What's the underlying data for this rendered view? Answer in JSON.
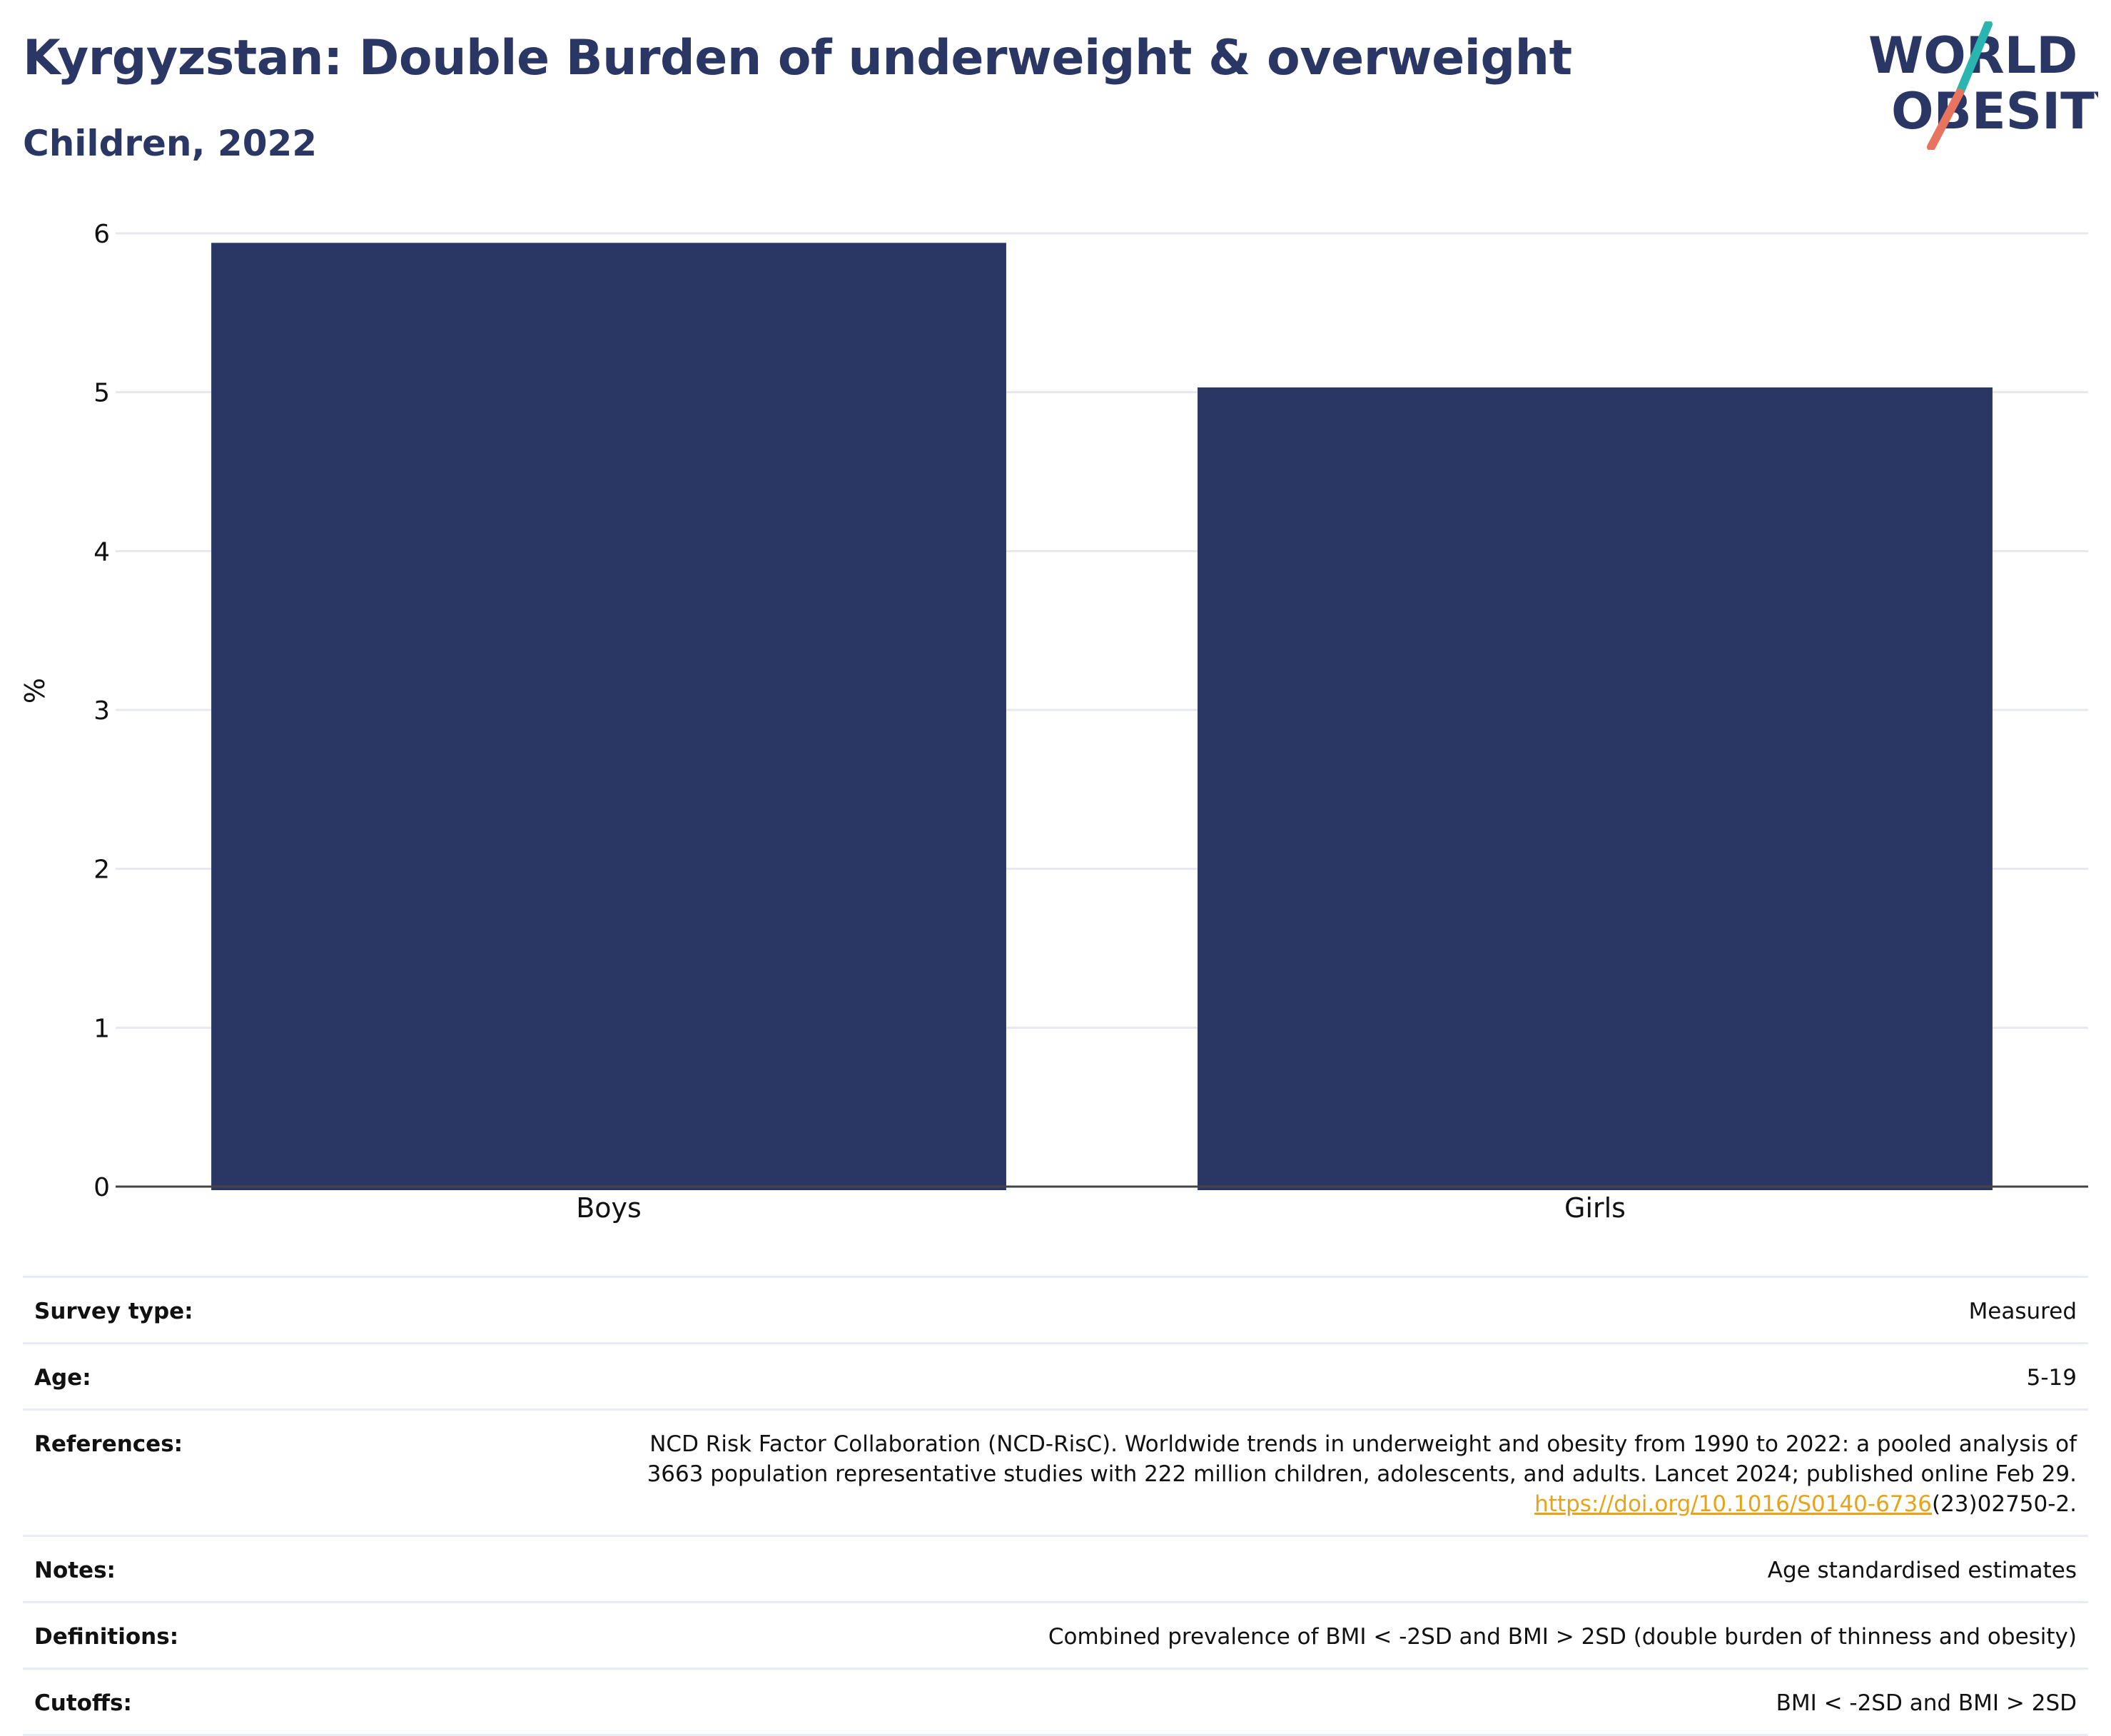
{
  "header": {
    "title": "Kyrgyzstan: Double Burden of underweight & overweight",
    "subtitle": "Children, 2022"
  },
  "logo": {
    "line1": "WORLD",
    "line2": "OBESITY",
    "slash_colors": [
      "#2bb5b0",
      "#e8745f"
    ],
    "text_color": "#2a3663"
  },
  "chart_data": {
    "type": "bar",
    "title": "Kyrgyzstan: Double Burden of underweight & overweight",
    "subtitle": "Children, 2022",
    "categories": [
      "Boys",
      "Girls"
    ],
    "values": [
      5.94,
      5.03
    ],
    "ylabel": "%",
    "xlabel": "",
    "ylim": [
      0,
      6
    ],
    "yticks": [
      0,
      1,
      2,
      3,
      4,
      5,
      6
    ],
    "grid": true,
    "bar_color": "#2a3663"
  },
  "info": {
    "rows": [
      {
        "label": "Survey type:",
        "lines": [
          "Measured"
        ]
      },
      {
        "label": "Age:",
        "lines": [
          "5-19"
        ]
      },
      {
        "label": "References:",
        "lines": [
          "NCD Risk Factor Collaboration (NCD-RisC). Worldwide trends in underweight and obesity from 1990 to 2022: a pooled analysis of",
          "3663 population representative studies with 222 million children, adolescents, and adults. Lancet 2024; published online Feb 29."
        ],
        "link": "https://doi.org/10.1016/S0140-6736",
        "link_suffix": "(23)02750-2."
      },
      {
        "label": "Notes:",
        "lines": [
          "Age standardised estimates"
        ]
      },
      {
        "label": "Definitions:",
        "lines": [
          "Combined prevalence of BMI < -2SD and BMI > 2SD (double burden of thinness and obesity)"
        ]
      },
      {
        "label": "Cutoffs:",
        "lines": [
          "BMI < -2SD and BMI > 2SD"
        ]
      }
    ]
  }
}
